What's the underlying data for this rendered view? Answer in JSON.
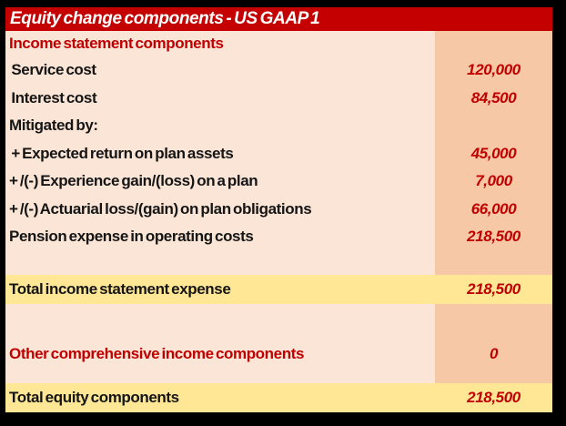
{
  "header": {
    "title": "Equity change components - US GAAP 1"
  },
  "colors": {
    "frame_border": "#000000",
    "header_bg": "#C40000",
    "header_text": "#FFFFFF",
    "body_bg": "#FBE5D6",
    "value_column_bg": "#F6C8A6",
    "total_row_bg": "#FFE795",
    "accent_red_text": "#C00000",
    "label_text": "#151515"
  },
  "table": {
    "rows": [
      {
        "label": "Income statement components",
        "value": ""
      },
      {
        "label": " Service cost",
        "value": "120,000"
      },
      {
        "label": " Interest cost",
        "value": "84,500"
      },
      {
        "label": "Mitigated by:",
        "value": ""
      },
      {
        "label": " + Expected return on plan assets",
        "value": "45,000"
      },
      {
        "label": "+ /(-) Experience gain/(loss) on a plan",
        "value": "7,000"
      },
      {
        "label": "+ /(-) Actuarial loss/(gain) on plan obligations",
        "value": "66,000"
      },
      {
        "label": "Pension expense in operating costs",
        "value": "218,500"
      },
      {
        "label": "",
        "value": ""
      },
      {
        "label": "Total income statement expense",
        "value": "218,500"
      },
      {
        "label": "",
        "value": ""
      },
      {
        "label": "Other comprehensive income components",
        "value": "0"
      },
      {
        "label": "Total equity components",
        "value": "218,500"
      }
    ]
  }
}
